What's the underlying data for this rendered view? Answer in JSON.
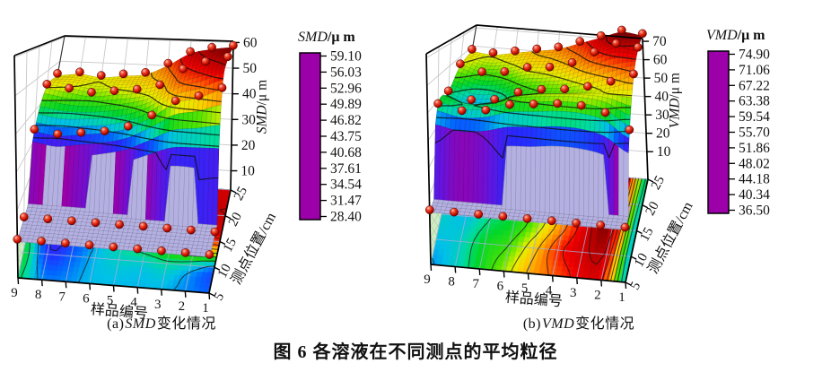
{
  "figure": {
    "background": "#ffffff",
    "caption": "图 6  各溶液在不同测点的平均粒径"
  },
  "panels": [
    {
      "caption_prefix": "(a)",
      "caption_var": "SMD",
      "caption_suffix": "变化情况"
    },
    {
      "caption_prefix": "(b)",
      "caption_var": "VMD",
      "caption_suffix": "变化情况"
    }
  ],
  "colors": {
    "below_min_lavender": "#b4b1e2",
    "sphere_red": "#cc1400",
    "colormap_stops": [
      [
        0.0,
        "#9c00a8"
      ],
      [
        0.05,
        "#6314e0"
      ],
      [
        0.1,
        "#2828ff"
      ],
      [
        0.16,
        "#0068ff"
      ],
      [
        0.22,
        "#00c0e8"
      ],
      [
        0.28,
        "#00dc9b"
      ],
      [
        0.34,
        "#00d62a"
      ],
      [
        0.42,
        "#52e400"
      ],
      [
        0.5,
        "#e6f000"
      ],
      [
        0.58,
        "#ffc800"
      ],
      [
        0.66,
        "#ff8c00"
      ],
      [
        0.74,
        "#ff4800"
      ],
      [
        0.82,
        "#ef0000"
      ],
      [
        0.91,
        "#c00000"
      ],
      [
        1.0,
        "#6b0000"
      ]
    ]
  },
  "chart_data": [
    {
      "id": "a",
      "type": "surface3d_with_floor_contour",
      "title": "(a) SMD变化情况",
      "x_axis": {
        "label": "样品编号",
        "ticks": [
          9,
          8,
          7,
          6,
          5,
          4,
          3,
          2,
          1
        ]
      },
      "y_axis": {
        "label": "测点位置/cm",
        "ticks": [
          5,
          10,
          15,
          20,
          25
        ]
      },
      "z_axis": {
        "label_var": "SMD",
        "label_unit": "/μ m",
        "ticks": [
          10,
          20,
          30,
          40,
          50,
          60
        ],
        "range": [
          2.5,
          60.5
        ]
      },
      "colorbar": {
        "title_var": "SMD",
        "title_unit": "/μ m",
        "levels": [
          "59.10",
          "56.03",
          "52.96",
          "49.89",
          "46.82",
          "43.75",
          "40.68",
          "37.61",
          "34.54",
          "31.47",
          "28.40"
        ]
      },
      "color_scale": {
        "min": 28.4,
        "max": 59.1
      },
      "grid_note": "rows = 测点位置 5→25 cm (front→back); cols = 样品编号 1→9; values in μm; values below color_scale.min render as flat lavender apron",
      "surface_values": [
        [
          11,
          12,
          12,
          12,
          12,
          11,
          11,
          11,
          12
        ],
        [
          15,
          18,
          19,
          19,
          18,
          17,
          15,
          14,
          15
        ],
        [
          50,
          47,
          45,
          40,
          36,
          34,
          33,
          32,
          33
        ],
        [
          57,
          55,
          52,
          46,
          44,
          43,
          42,
          43,
          44
        ],
        [
          58,
          57,
          55,
          50,
          46,
          45,
          44,
          45,
          44
        ]
      ],
      "floor_values": [
        [
          33,
          34,
          35,
          35,
          35,
          35,
          34,
          34,
          38
        ],
        [
          34,
          36,
          37,
          36,
          36,
          35,
          33,
          32,
          39
        ],
        [
          52,
          50,
          45,
          42,
          38,
          35,
          32,
          31,
          38
        ],
        [
          56,
          55,
          52,
          46,
          42,
          38,
          33,
          32,
          39
        ],
        [
          55,
          56,
          54,
          48,
          44,
          40,
          36,
          34,
          40
        ]
      ]
    },
    {
      "id": "b",
      "type": "surface3d_with_floor_contour",
      "title": "(b) VMD变化情况",
      "x_axis": {
        "label": "样品编号",
        "ticks": [
          9,
          8,
          7,
          6,
          5,
          4,
          3,
          2,
          1
        ]
      },
      "y_axis": {
        "label": "测点位置/cm",
        "ticks": [
          5,
          10,
          15,
          20,
          25
        ]
      },
      "z_axis": {
        "label_var": "VMD",
        "label_unit": "/μ m",
        "ticks": [
          10,
          20,
          30,
          40,
          50,
          60,
          70
        ],
        "range": [
          -5,
          71.5
        ]
      },
      "colorbar": {
        "title_var": "VMD",
        "title_unit": "/μ m",
        "levels": [
          "74.90",
          "71.06",
          "67.22",
          "63.38",
          "59.54",
          "55.70",
          "51.86",
          "48.02",
          "44.18",
          "40.34",
          "36.50"
        ]
      },
      "color_scale": {
        "min": 36.5,
        "max": 74.9
      },
      "grid_note": "rows = 测点位置 5→25 cm (front→back); cols = 样品编号 1→9; values in μm; values below color_scale.min render as flat lavender apron",
      "surface_values": [
        [
          13,
          14,
          14,
          14,
          13,
          13,
          13,
          13,
          14
        ],
        [
          44,
          50,
          52,
          52,
          51,
          50,
          47,
          46,
          48
        ],
        [
          62,
          58,
          55,
          53,
          52,
          50,
          46,
          45,
          48
        ],
        [
          70,
          71,
          66,
          60,
          57,
          56,
          53,
          52,
          55
        ],
        [
          73,
          74,
          70,
          66,
          62,
          60,
          58,
          56,
          57
        ]
      ],
      "floor_values": [
        [
          45,
          68,
          68,
          64,
          60,
          54,
          50,
          46,
          44
        ],
        [
          44,
          70,
          70,
          66,
          58,
          52,
          50,
          46,
          45
        ],
        [
          44,
          72,
          70,
          62,
          54,
          50,
          48,
          45,
          46
        ],
        [
          45,
          72,
          71,
          64,
          56,
          52,
          48,
          44,
          46
        ],
        [
          46,
          73,
          72,
          68,
          60,
          56,
          52,
          46,
          47
        ]
      ]
    }
  ]
}
